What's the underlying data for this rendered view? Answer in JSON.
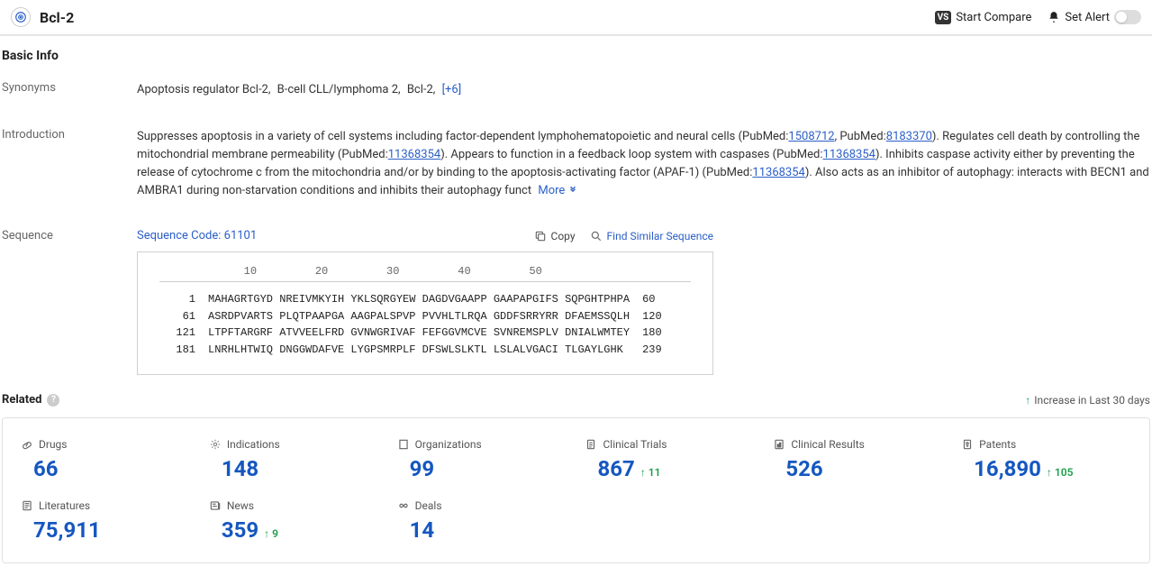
{
  "header": {
    "title": "Bcl-2",
    "compare_label": "Start Compare",
    "alert_label": "Set Alert"
  },
  "basic_info": {
    "section_title": "Basic Info",
    "synonyms": {
      "label": "Synonyms",
      "items": [
        "Apoptosis regulator Bcl-2,",
        "B-cell CLL/lymphoma 2,",
        "Bcl-2,"
      ],
      "more": "[+6]"
    },
    "introduction": {
      "label": "Introduction",
      "part1": "Suppresses apoptosis in a variety of cell systems including factor-dependent lymphohematopoietic and neural cells (PubMed:",
      "pm1": "1508712",
      "part2": ", PubMed:",
      "pm2": "8183370",
      "part3": "). Regulates cell death by controlling the mitochondrial membrane permeability (PubMed:",
      "pm3": "11368354",
      "part4": "). Appears to function in a feedback loop system with caspases (PubMed:",
      "pm4": "11368354",
      "part5": "). Inhibits caspase activity either by preventing the release of cytochrome c from the mitochondria and/or by binding to the apoptosis-activating factor (APAF-1) (PubMed:",
      "pm5": "11368354",
      "part6": "). Also acts as an inhibitor of autophagy: interacts with BECN1 and AMBRA1 during non-starvation conditions and inhibits their autophagy funct",
      "more": "More"
    },
    "sequence": {
      "label": "Sequence",
      "code_label": "Sequence Code: 61101",
      "copy_label": "Copy",
      "find_label": "Find Similar Sequence",
      "ruler": "             10         20         30         40         50",
      "lines": [
        {
          "start": "1",
          "seq": "MAHAGRTGYD NREIVMKYIH YKLSQRGYEW DAGDVGAAPP GAAPAPGIFS SQPGHTPHPA",
          "end": "60"
        },
        {
          "start": "61",
          "seq": "ASRDPVARTS PLQTPAAPGA AAGPALSPVP PVVHLTLRQA GDDFSRRYRR DFAEMSSQLH",
          "end": "120"
        },
        {
          "start": "121",
          "seq": "LTPFTARGRF ATVVEELFRD GVNWGRIVAF FEFGGVMCVE SVNREMSPLV DNIALWMTEY",
          "end": "180"
        },
        {
          "start": "181",
          "seq": "LNRHLHTWIQ DNGGWDAFVE LYGPSMRPLF DFSWLSLKTL LSLALVGACI TLGAYLGHK ",
          "end": "239"
        }
      ]
    }
  },
  "related": {
    "title": "Related",
    "increase_label": "Increase in Last 30 days",
    "cards": [
      {
        "icon": "drug",
        "label": "Drugs",
        "value": "66",
        "delta": null
      },
      {
        "icon": "indication",
        "label": "Indications",
        "value": "148",
        "delta": null
      },
      {
        "icon": "org",
        "label": "Organizations",
        "value": "99",
        "delta": null
      },
      {
        "icon": "trial",
        "label": "Clinical Trials",
        "value": "867",
        "delta": "11"
      },
      {
        "icon": "result",
        "label": "Clinical Results",
        "value": "526",
        "delta": null
      },
      {
        "icon": "patent",
        "label": "Patents",
        "value": "16,890",
        "delta": "105"
      },
      {
        "icon": "lit",
        "label": "Literatures",
        "value": "75,911",
        "delta": null
      },
      {
        "icon": "news",
        "label": "News",
        "value": "359",
        "delta": "9"
      },
      {
        "icon": "deal",
        "label": "Deals",
        "value": "14",
        "delta": null
      }
    ]
  }
}
